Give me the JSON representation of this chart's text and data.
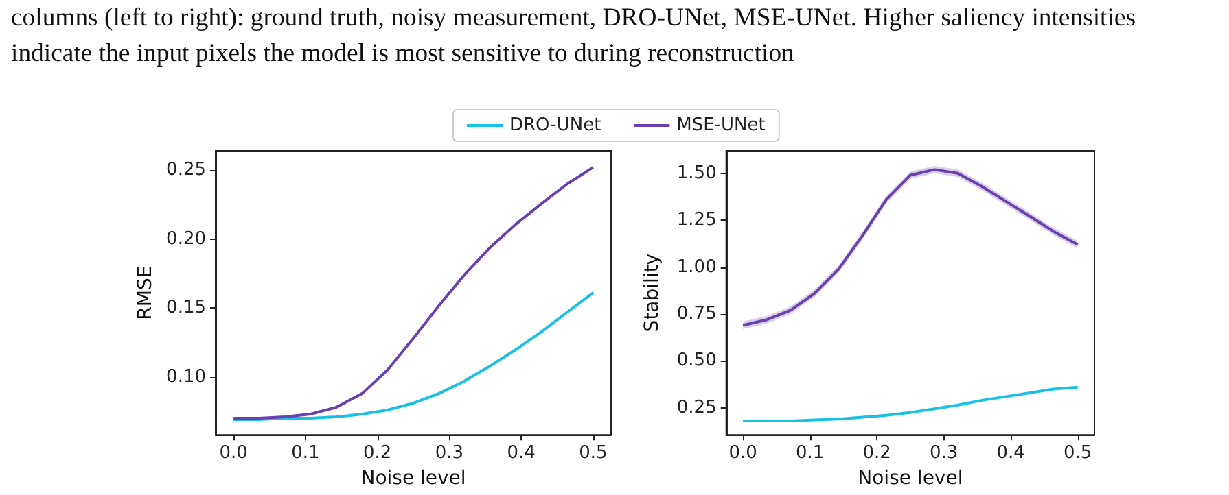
{
  "chart_data": [
    {
      "type": "line",
      "annotations": [
        "columns (left to right): ground truth, noisy measurement, DRO-UNet, MSE-UNet. Higher saliency intensities indicate the input pixels the model is most sensitive to during reconstruction"
      ],
      "xlabel": "Noise level",
      "ylabel": "RMSE",
      "legend": "top",
      "x": [
        0,
        0.036,
        0.071,
        0.107,
        0.143,
        0.179,
        0.214,
        0.25,
        0.286,
        0.321,
        0.357,
        0.393,
        0.429,
        0.464,
        0.5
      ],
      "series": [
        {
          "name": "DRO-UNet",
          "color": "#17c1e6",
          "values": [
            0.069,
            0.069,
            0.07,
            0.07,
            0.071,
            0.073,
            0.076,
            0.081,
            0.088,
            0.097,
            0.108,
            0.12,
            0.133,
            0.147,
            0.161
          ]
        },
        {
          "name": "MSE-UNet",
          "color": "#6a3fae",
          "values": [
            0.07,
            0.07,
            0.071,
            0.073,
            0.078,
            0.088,
            0.105,
            0.128,
            0.152,
            0.174,
            0.194,
            0.211,
            0.226,
            0.24,
            0.252
          ]
        }
      ],
      "xlim": [
        -0.025,
        0.525
      ],
      "xticks": [
        {
          "value": 0,
          "label": "0.0"
        },
        {
          "value": 0.1,
          "label": "0.1"
        },
        {
          "value": 0.2,
          "label": "0.2"
        },
        {
          "value": 0.3,
          "label": "0.3"
        },
        {
          "value": 0.4,
          "label": "0.4"
        },
        {
          "value": 0.5,
          "label": "0.5"
        }
      ],
      "ylim": [
        0.058,
        0.264
      ],
      "yticks": [
        {
          "value": 0.1,
          "label": "0.10"
        },
        {
          "value": 0.15,
          "label": "0.15"
        },
        {
          "value": 0.2,
          "label": "0.20"
        },
        {
          "value": 0.25,
          "label": "0.25"
        }
      ]
    },
    {
      "type": "line",
      "xlabel": "Noise level",
      "ylabel": "Stability",
      "x": [
        0,
        0.036,
        0.071,
        0.107,
        0.143,
        0.179,
        0.214,
        0.25,
        0.286,
        0.321,
        0.357,
        0.393,
        0.429,
        0.464,
        0.5
      ],
      "series": [
        {
          "color": "#17c1e6",
          "values": [
            0.18,
            0.18,
            0.18,
            0.185,
            0.19,
            0.2,
            0.21,
            0.225,
            0.245,
            0.265,
            0.29,
            0.31,
            0.33,
            0.35,
            0.36
          ]
        },
        {
          "color": "#6a3fae",
          "values": [
            0.69,
            0.72,
            0.77,
            0.86,
            0.99,
            1.17,
            1.36,
            1.49,
            1.52,
            1.5,
            1.43,
            1.35,
            1.27,
            1.19,
            1.12
          ],
          "lower": [
            0.67,
            0.7,
            0.75,
            0.84,
            0.97,
            1.15,
            1.34,
            1.47,
            1.5,
            1.48,
            1.41,
            1.33,
            1.25,
            1.17,
            1.1
          ],
          "upper": [
            0.71,
            0.74,
            0.79,
            0.88,
            1.01,
            1.19,
            1.38,
            1.51,
            1.54,
            1.52,
            1.45,
            1.37,
            1.29,
            1.21,
            1.14
          ]
        }
      ],
      "xlim": [
        -0.025,
        0.525
      ],
      "xticks": [
        {
          "value": 0,
          "label": "0.0"
        },
        {
          "value": 0.1,
          "label": "0.1"
        },
        {
          "value": 0.2,
          "label": "0.2"
        },
        {
          "value": 0.3,
          "label": "0.3"
        },
        {
          "value": 0.4,
          "label": "0.4"
        },
        {
          "value": 0.5,
          "label": "0.5"
        }
      ],
      "ylim": [
        0.106,
        1.62
      ],
      "yticks": [
        {
          "value": 0.25,
          "label": "0.25"
        },
        {
          "value": 0.5,
          "label": "0.50"
        },
        {
          "value": 0.75,
          "label": "0.75"
        },
        {
          "value": 1.0,
          "label": "1.00"
        },
        {
          "value": 1.25,
          "label": "1.25"
        },
        {
          "value": 1.5,
          "label": "1.50"
        }
      ]
    }
  ]
}
